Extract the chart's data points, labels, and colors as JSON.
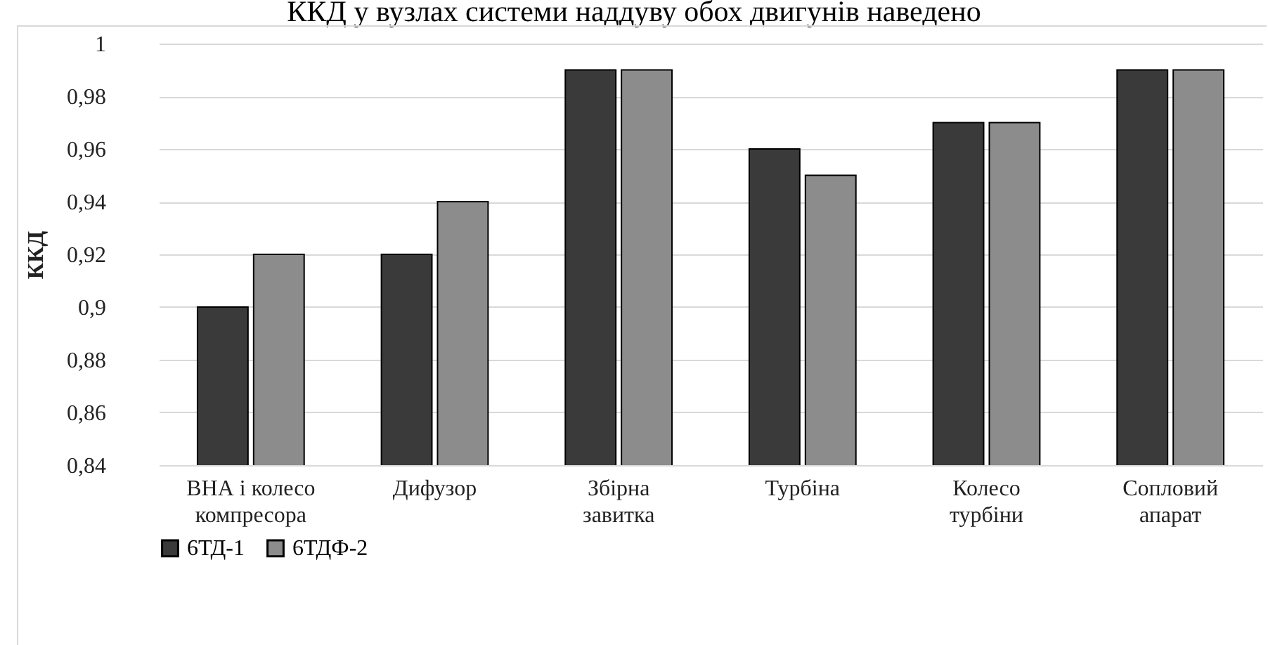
{
  "chart_data": {
    "type": "bar",
    "annotations": [
      "ККД у вузлах системи наддуву обох двигунів наведено"
    ],
    "ylabel": "ККД",
    "categories": [
      "ВНА  і колесо\nкомпресора",
      "Дифузор",
      "Збірна\nзавитка",
      "Турбіна",
      "Колесо\nтурбіни",
      "Сопловий\nапарат"
    ],
    "series": [
      {
        "name": "6ТД-1",
        "color": "#3a3a3a",
        "values": [
          0.9,
          0.92,
          0.99,
          0.96,
          0.97,
          0.99
        ]
      },
      {
        "name": "6ТДФ-2",
        "color": "#8c8c8c",
        "values": [
          0.92,
          0.94,
          0.99,
          0.95,
          0.97,
          0.99
        ]
      }
    ],
    "ylim": [
      0.84,
      1
    ],
    "yticks": [
      {
        "value": 0.84,
        "label": "0,84"
      },
      {
        "value": 0.86,
        "label": "0,86"
      },
      {
        "value": 0.88,
        "label": "0,88"
      },
      {
        "value": 0.9,
        "label": "0,9"
      },
      {
        "value": 0.92,
        "label": "0,92"
      },
      {
        "value": 0.94,
        "label": "0,94"
      },
      {
        "value": 0.96,
        "label": "0,96"
      },
      {
        "value": 0.98,
        "label": "0,98"
      },
      {
        "value": 1,
        "label": "1"
      }
    ],
    "grid": "y",
    "legend": "bottom"
  }
}
